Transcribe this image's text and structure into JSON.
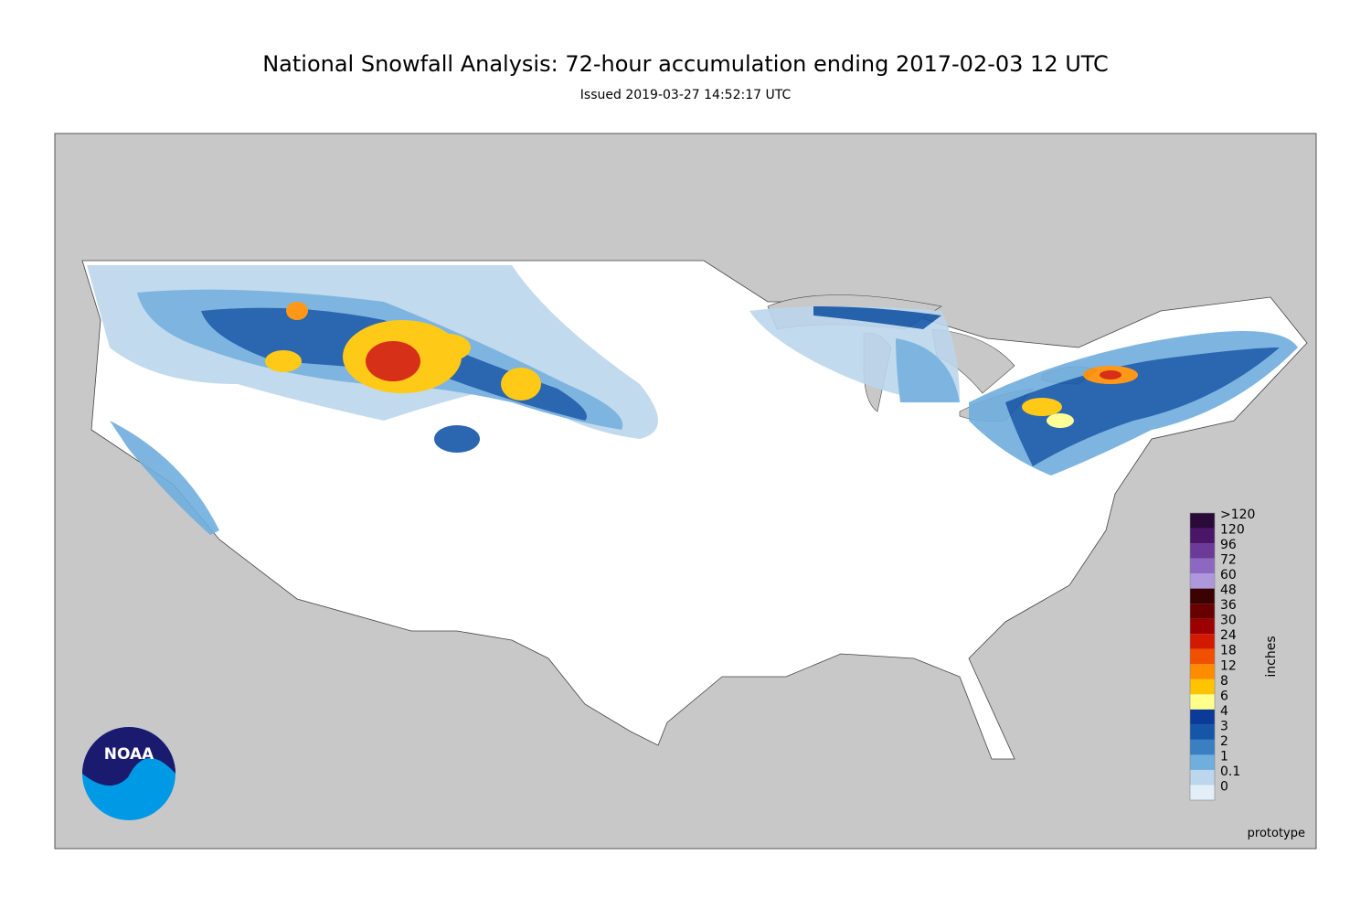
{
  "header": {
    "title": "National Snowfall Analysis: 72-hour accumulation ending 2017-02-03 12 UTC",
    "subtitle": "Issued 2019-03-27 14:52:17 UTC"
  },
  "legend": {
    "unit": "inches",
    "entries": [
      {
        "label": ">120",
        "color": "#2a0a38"
      },
      {
        "label": "120",
        "color": "#4a1668"
      },
      {
        "label": "96",
        "color": "#6c3a98"
      },
      {
        "label": "72",
        "color": "#8c68c0"
      },
      {
        "label": "60",
        "color": "#ad98dc"
      },
      {
        "label": "48",
        "color": "#3a0200"
      },
      {
        "label": "36",
        "color": "#680000"
      },
      {
        "label": "30",
        "color": "#9c0000"
      },
      {
        "label": "24",
        "color": "#d21a00"
      },
      {
        "label": "18",
        "color": "#f05000"
      },
      {
        "label": "12",
        "color": "#ff8c00"
      },
      {
        "label": "8",
        "color": "#ffc400"
      },
      {
        "label": "6",
        "color": "#ffff8c"
      },
      {
        "label": "4",
        "color": "#0b3a98"
      },
      {
        "label": "3",
        "color": "#1556a8"
      },
      {
        "label": "2",
        "color": "#3a7fc2"
      },
      {
        "label": "1",
        "color": "#6faedd"
      },
      {
        "label": "0.1",
        "color": "#bcd6ec"
      },
      {
        "label": "0",
        "color": "#e4eef8"
      }
    ]
  },
  "watermark": "prototype",
  "logo": "NOAA"
}
